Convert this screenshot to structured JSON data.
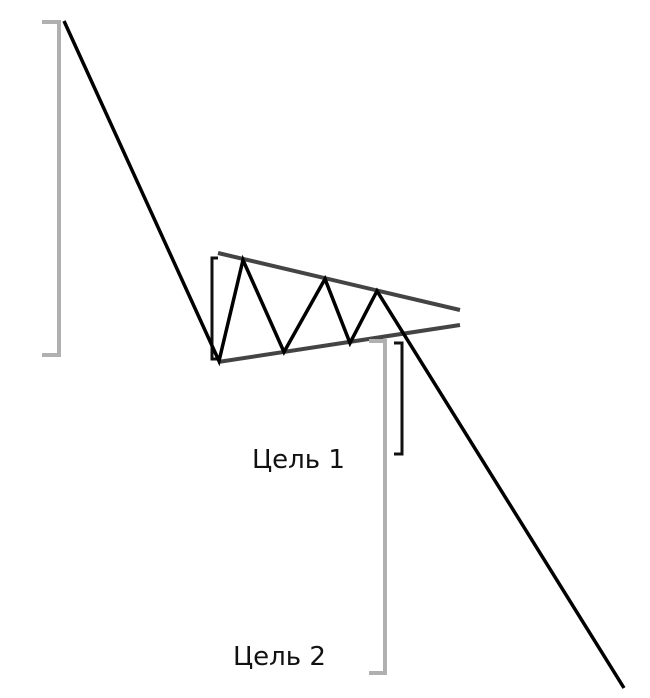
{
  "labels": {
    "target1": "Цель 1",
    "target2": "Цель 2"
  },
  "colors": {
    "price_line": "#000000",
    "trendlines": "#444444",
    "bracket_gray": "#b0b0b0",
    "bracket_dark": "#111111",
    "background": "#ffffff"
  }
}
